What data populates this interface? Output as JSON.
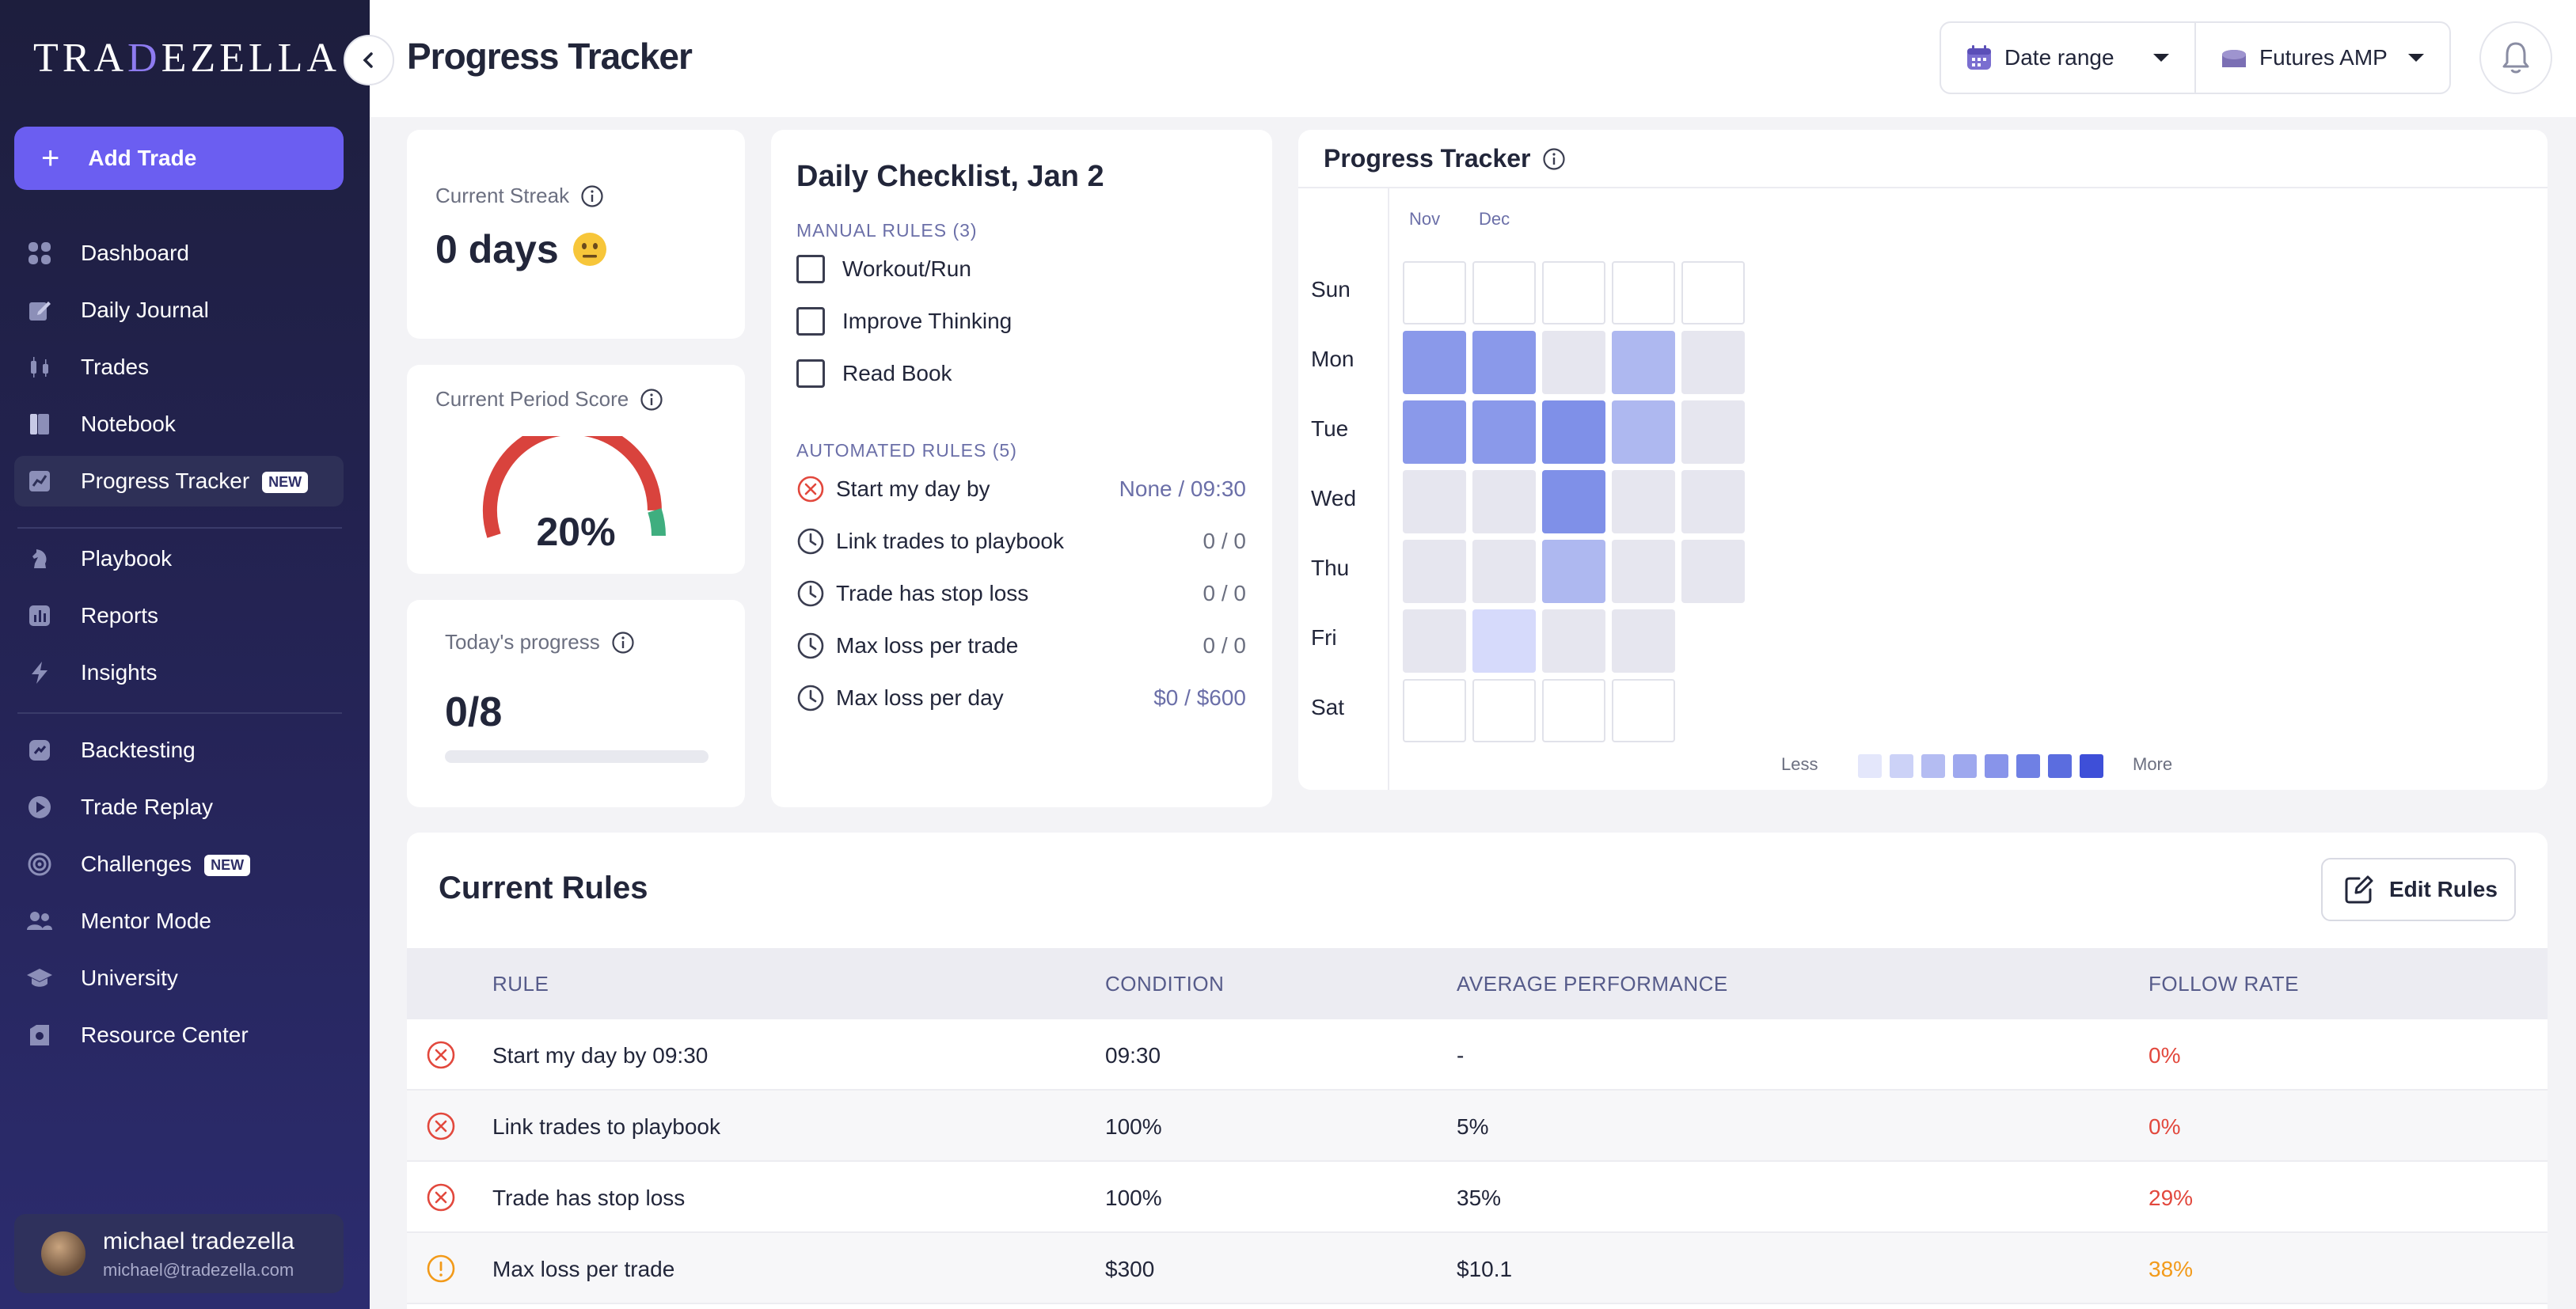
{
  "app": {
    "logo_prefix": "TRA",
    "logo_x": "D",
    "logo_suffix": "EZELLA"
  },
  "sidebar": {
    "add_trade_label": "Add Trade",
    "items": [
      {
        "label": "Dashboard",
        "icon": "grid-icon"
      },
      {
        "label": "Daily Journal",
        "icon": "journal-edit-icon"
      },
      {
        "label": "Trades",
        "icon": "candlestick-icon"
      },
      {
        "label": "Notebook",
        "icon": "notebook-icon"
      },
      {
        "label": "Progress Tracker",
        "icon": "chart-icon",
        "badge": "NEW",
        "active": true
      },
      {
        "label": "Playbook",
        "icon": "chess-knight-icon"
      },
      {
        "label": "Reports",
        "icon": "bar-chart-icon"
      },
      {
        "label": "Insights",
        "icon": "lightning-icon"
      },
      {
        "label": "Backtesting",
        "icon": "backtest-icon"
      },
      {
        "label": "Trade Replay",
        "icon": "play-icon"
      },
      {
        "label": "Challenges",
        "icon": "target-icon",
        "badge": "NEW"
      },
      {
        "label": "Mentor Mode",
        "icon": "users-icon"
      },
      {
        "label": "University",
        "icon": "graduation-cap-icon"
      },
      {
        "label": "Resource Center",
        "icon": "resource-icon"
      }
    ],
    "user": {
      "name": "michael tradezella",
      "email": "michael@tradezella.com"
    }
  },
  "header": {
    "title": "Progress Tracker",
    "date_range_label": "Date range",
    "account_label": "Futures AMP"
  },
  "streak": {
    "label": "Current Streak",
    "value": "0 days"
  },
  "period_score": {
    "label": "Current Period Score",
    "value": "20%",
    "fraction": 0.2
  },
  "today": {
    "label": "Today's progress",
    "value": "0/8",
    "fraction": 0.0
  },
  "checklist": {
    "title": "Daily Checklist, Jan 2",
    "manual_title": "MANUAL RULES (3)",
    "manual": [
      "Workout/Run",
      "Improve Thinking",
      "Read Book"
    ],
    "auto_title": "AUTOMATED RULES (5)",
    "auto": [
      {
        "label": "Start my day by",
        "value": "None / 09:30",
        "status": "failed"
      },
      {
        "label": "Link trades to playbook",
        "value": "0 / 0",
        "status": "pending"
      },
      {
        "label": "Trade has stop loss",
        "value": "0 / 0",
        "status": "pending"
      },
      {
        "label": "Max loss per trade",
        "value": "0 / 0",
        "status": "pending"
      },
      {
        "label": "Max loss per day",
        "value": "$0 / $600",
        "status": "pending"
      }
    ]
  },
  "heatmap": {
    "title": "Progress Tracker",
    "months": [
      "Nov",
      "Dec"
    ],
    "days": [
      "Sun",
      "Mon",
      "Tue",
      "Wed",
      "Thu",
      "Fri",
      "Sat"
    ],
    "legend_less": "Less",
    "legend_more": "More",
    "levels": [
      [
        0,
        0,
        0,
        0,
        0
      ],
      [
        5,
        5,
        1,
        3,
        1
      ],
      [
        5,
        5,
        6,
        3,
        1
      ],
      [
        1,
        1,
        6,
        1,
        1
      ],
      [
        1,
        1,
        3,
        1,
        1
      ],
      [
        1,
        2,
        1,
        1,
        null
      ],
      [
        0,
        0,
        0,
        0,
        null
      ]
    ],
    "colors": {
      "empty": "#ffffff",
      "none": "#e6e6ef",
      "l2": "#d6dafb",
      "l3": "#aeb8f0",
      "l5": "#8a99ea",
      "l6": "#7f90e8"
    },
    "legend_colors": [
      "#e4e7fb",
      "#ccd2f7",
      "#b4bcf2",
      "#9ea8ee",
      "#8894ea",
      "#6f80e4",
      "#5b6ddf",
      "#3e4fd8"
    ]
  },
  "rules": {
    "title": "Current Rules",
    "edit_label": "Edit Rules",
    "columns": [
      "RULE",
      "CONDITION",
      "AVERAGE PERFORMANCE",
      "FOLLOW RATE"
    ],
    "rows": [
      {
        "rule": "Start my day by 09:30",
        "condition": "09:30",
        "avg": "-",
        "rate": "0%",
        "status": "error"
      },
      {
        "rule": "Link trades to playbook",
        "condition": "100%",
        "avg": "5%",
        "rate": "0%",
        "status": "error"
      },
      {
        "rule": "Trade has stop loss",
        "condition": "100%",
        "avg": "35%",
        "rate": "29%",
        "status": "error"
      },
      {
        "rule": "Max loss per trade",
        "condition": "$300",
        "avg": "$10.1",
        "rate": "38%",
        "status": "warning"
      }
    ]
  }
}
